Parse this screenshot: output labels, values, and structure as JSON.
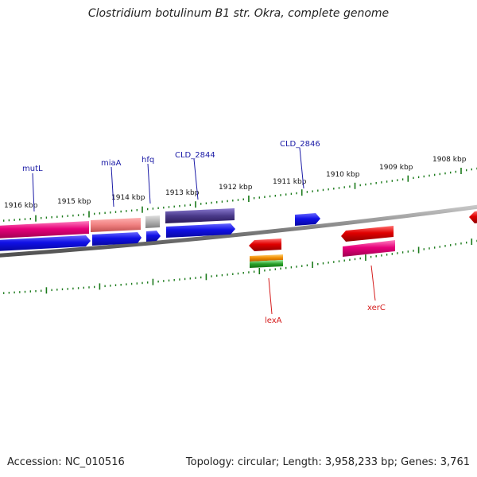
{
  "title": "Clostridium botulinum B1 str. Okra, complete genome",
  "footer": {
    "accession": "Accession: NC_010516",
    "summary": "Topology: circular; Length: 3,958,233 bp; Genes: 3,761"
  },
  "ruler_ticks": [
    {
      "label": "1916 kbp"
    },
    {
      "label": "1915 kbp"
    },
    {
      "label": "1914 kbp"
    },
    {
      "label": "1913 kbp"
    },
    {
      "label": "1912 kbp"
    },
    {
      "label": "1911 kbp"
    },
    {
      "label": "1910 kbp"
    },
    {
      "label": "1909 kbp"
    },
    {
      "label": "1908 kbp"
    }
  ],
  "gene_labels": [
    {
      "name": "mutL",
      "strand": "forward"
    },
    {
      "name": "miaA",
      "strand": "forward"
    },
    {
      "name": "hfq",
      "strand": "forward"
    },
    {
      "name": "CLD_2844",
      "strand": "forward"
    },
    {
      "name": "CLD_2846",
      "strand": "forward"
    },
    {
      "name": "lexA",
      "strand": "reverse"
    },
    {
      "name": "xerC",
      "strand": "reverse"
    }
  ],
  "colors": {
    "backbone": "#808080",
    "gene_label_forward": "#1a1aa6",
    "gene_label_reverse": "#d41a1a",
    "tick": "#1a7a1a",
    "cds": "#1010e6",
    "gene": "#e6007a",
    "reverse_cds": "#e00000",
    "rna": "#2aa02a",
    "orange": "#f08c00",
    "misc": "#5a4a9a"
  }
}
